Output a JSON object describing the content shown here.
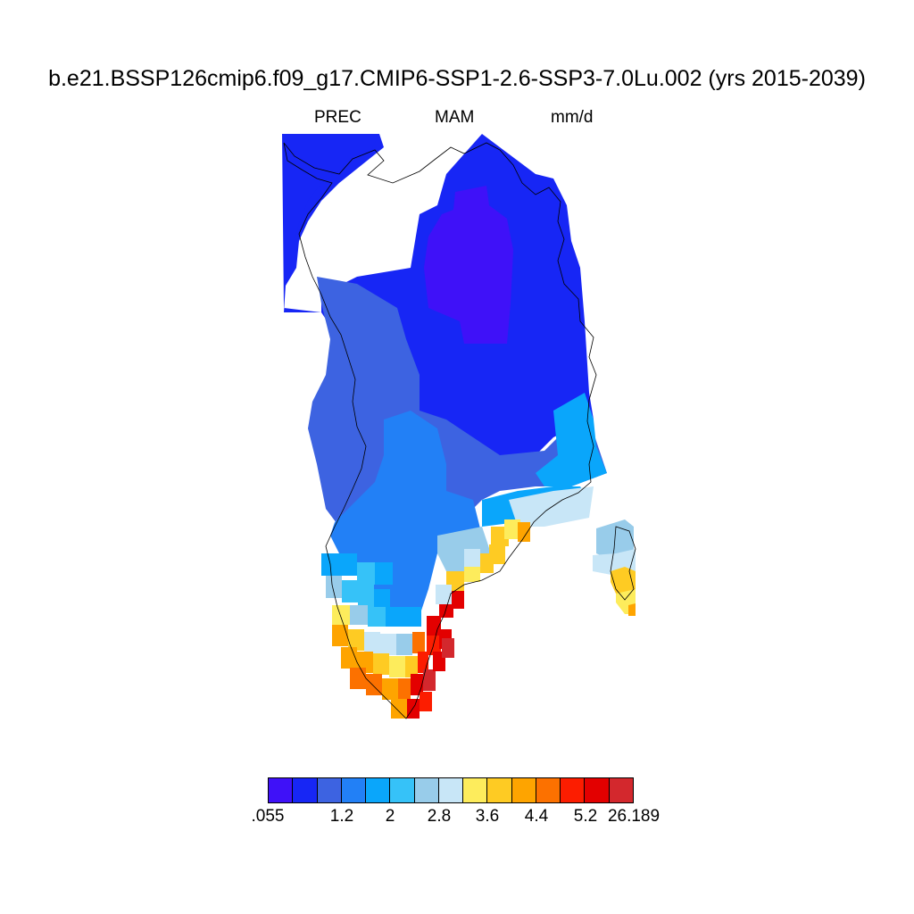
{
  "title": "b.e21.BSSP126cmip6.f09_g17.CMIP6-SSP1-2.6-SSP3-7.0Lu.002 (yrs 2015-2039)",
  "subtitle": {
    "variable": "PREC",
    "season": "MAM",
    "units": "mm/d"
  },
  "colorbar": {
    "colors": [
      "#3f11f8",
      "#1726f5",
      "#3d63e1",
      "#2280f6",
      "#0aa6fb",
      "#36c2f8",
      "#98ccea",
      "#c8e6f7",
      "#fdec5c",
      "#fecb23",
      "#fea400",
      "#fc7100",
      "#fc1d00",
      "#e30000",
      "#d3282d"
    ],
    "labels": [
      ".055",
      "1.2",
      "2",
      "2.8",
      "3.6",
      "4.4",
      "5.2",
      "26.189"
    ]
  },
  "map_region": "Greenland"
}
